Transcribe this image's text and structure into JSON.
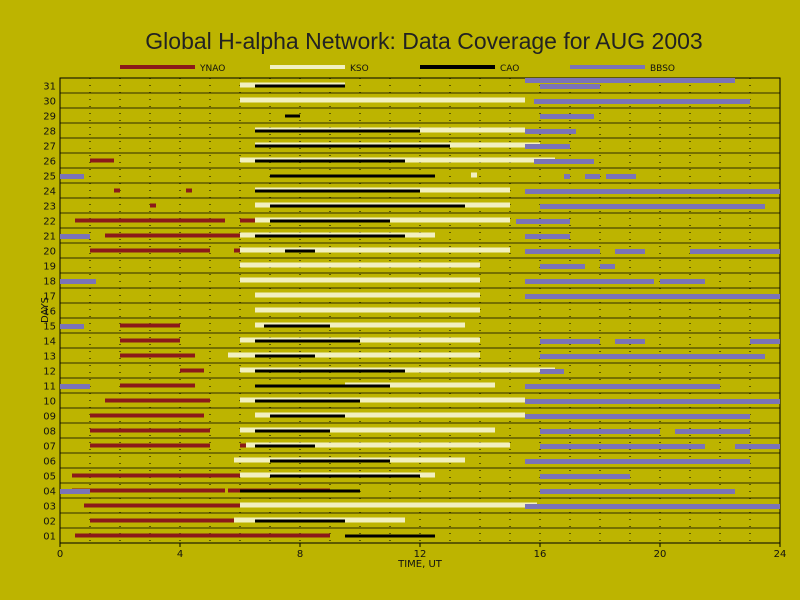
{
  "chart_data": {
    "type": "timeline",
    "title": "Global H-alpha Network: Data Coverage for AUG 2003",
    "xlabel": "TIME, UT",
    "ylabel": "DAYS",
    "xlim": [
      0,
      24
    ],
    "xticks": [
      "0",
      "4",
      "8",
      "12",
      "16",
      "20",
      "24"
    ],
    "ylim": [
      0.5,
      31.5
    ],
    "yticks": [
      "01",
      "02",
      "03",
      "04",
      "05",
      "06",
      "07",
      "08",
      "09",
      "10",
      "11",
      "12",
      "13",
      "14",
      "15",
      "16",
      "17",
      "18",
      "19",
      "20",
      "21",
      "22",
      "23",
      "24",
      "25",
      "26",
      "27",
      "28",
      "29",
      "30",
      "31"
    ],
    "legend_position": "top",
    "series": [
      {
        "name": "YNAO",
        "color": "#8b1a1a",
        "intervals": [
          {
            "day": 1,
            "segments": [
              [
                0.5,
                9.0
              ]
            ]
          },
          {
            "day": 2,
            "segments": [
              [
                1.0,
                5.8
              ]
            ]
          },
          {
            "day": 3,
            "segments": [
              [
                0.8,
                6.0
              ]
            ]
          },
          {
            "day": 4,
            "segments": [
              [
                0.4,
                5.5
              ],
              [
                5.6,
                9.0
              ]
            ]
          },
          {
            "day": 5,
            "segments": [
              [
                0.4,
                5.5
              ],
              [
                5.5,
                7.5
              ]
            ]
          },
          {
            "day": 7,
            "segments": [
              [
                1.0,
                5.0
              ],
              [
                6.0,
                8.0
              ]
            ]
          },
          {
            "day": 8,
            "segments": [
              [
                1.0,
                5.0
              ]
            ]
          },
          {
            "day": 9,
            "segments": [
              [
                1.0,
                4.8
              ],
              [
                7.0,
                8.0
              ]
            ]
          },
          {
            "day": 10,
            "segments": [
              [
                1.5,
                5.0
              ]
            ]
          },
          {
            "day": 11,
            "segments": [
              [
                2.0,
                4.5
              ]
            ]
          },
          {
            "day": 12,
            "segments": [
              [
                4.0,
                4.8
              ]
            ]
          },
          {
            "day": 13,
            "segments": [
              [
                2.0,
                4.5
              ],
              [
                6.5,
                8.5
              ]
            ]
          },
          {
            "day": 14,
            "segments": [
              [
                2.0,
                4.0
              ]
            ]
          },
          {
            "day": 15,
            "segments": [
              [
                2.0,
                4.0
              ],
              [
                7.0,
                8.5
              ]
            ]
          },
          {
            "day": 20,
            "segments": [
              [
                1.0,
                5.0
              ],
              [
                5.8,
                9.0
              ]
            ]
          },
          {
            "day": 21,
            "segments": [
              [
                1.5,
                6.0
              ],
              [
                6.0,
                9.0
              ]
            ]
          },
          {
            "day": 22,
            "segments": [
              [
                0.5,
                5.5
              ],
              [
                6.0,
                9.0
              ]
            ]
          },
          {
            "day": 23,
            "segments": [
              [
                3.0,
                3.2
              ]
            ]
          },
          {
            "day": 24,
            "segments": [
              [
                1.8,
                2.0
              ],
              [
                4.2,
                4.4
              ]
            ]
          },
          {
            "day": 26,
            "segments": [
              [
                1.0,
                1.8
              ]
            ]
          }
        ]
      },
      {
        "name": "KSO",
        "color": "#f2f0c0",
        "intervals": [
          {
            "day": 2,
            "segments": [
              [
                5.8,
                11.5
              ]
            ]
          },
          {
            "day": 3,
            "segments": [
              [
                6.0,
                15.9
              ]
            ]
          },
          {
            "day": 5,
            "segments": [
              [
                6.0,
                12.5
              ]
            ]
          },
          {
            "day": 6,
            "segments": [
              [
                5.8,
                13.5
              ]
            ]
          },
          {
            "day": 7,
            "segments": [
              [
                6.2,
                15.0
              ]
            ]
          },
          {
            "day": 8,
            "segments": [
              [
                6.0,
                14.5
              ]
            ]
          },
          {
            "day": 9,
            "segments": [
              [
                6.5,
                15.5
              ]
            ]
          },
          {
            "day": 10,
            "segments": [
              [
                6.0,
                15.5
              ]
            ]
          },
          {
            "day": 11,
            "segments": [
              [
                9.5,
                14.5
              ]
            ]
          },
          {
            "day": 12,
            "segments": [
              [
                6.0,
                16.5
              ]
            ]
          },
          {
            "day": 13,
            "segments": [
              [
                5.6,
                14.0
              ]
            ]
          },
          {
            "day": 14,
            "segments": [
              [
                6.0,
                14.0
              ]
            ]
          },
          {
            "day": 15,
            "segments": [
              [
                6.5,
                13.5
              ]
            ]
          },
          {
            "day": 16,
            "segments": [
              [
                6.5,
                14.0
              ]
            ]
          },
          {
            "day": 17,
            "segments": [
              [
                6.5,
                14.0
              ]
            ]
          },
          {
            "day": 18,
            "segments": [
              [
                6.0,
                14.0
              ]
            ]
          },
          {
            "day": 19,
            "segments": [
              [
                6.0,
                14.0
              ]
            ]
          },
          {
            "day": 20,
            "segments": [
              [
                6.0,
                15.0
              ]
            ]
          },
          {
            "day": 21,
            "segments": [
              [
                6.0,
                12.5
              ]
            ]
          },
          {
            "day": 22,
            "segments": [
              [
                6.5,
                15.0
              ]
            ]
          },
          {
            "day": 23,
            "segments": [
              [
                6.5,
                15.0
              ]
            ]
          },
          {
            "day": 24,
            "segments": [
              [
                6.5,
                15.0
              ]
            ]
          },
          {
            "day": 25,
            "segments": [
              [
                13.7,
                13.9
              ]
            ]
          },
          {
            "day": 26,
            "segments": [
              [
                6.0,
                16.5
              ]
            ]
          },
          {
            "day": 27,
            "segments": [
              [
                6.5,
                16.0
              ]
            ]
          },
          {
            "day": 28,
            "segments": [
              [
                6.5,
                15.5
              ]
            ]
          },
          {
            "day": 30,
            "segments": [
              [
                6.0,
                15.5
              ]
            ]
          },
          {
            "day": 31,
            "segments": [
              [
                6.0,
                9.5
              ]
            ]
          }
        ]
      },
      {
        "name": "CAO",
        "color": "#000000",
        "intervals": [
          {
            "day": 1,
            "segments": [
              [
                9.5,
                12.5
              ]
            ]
          },
          {
            "day": 2,
            "segments": [
              [
                6.5,
                9.5
              ]
            ]
          },
          {
            "day": 4,
            "segments": [
              [
                6.0,
                10.0
              ]
            ]
          },
          {
            "day": 5,
            "segments": [
              [
                7.0,
                12.0
              ]
            ]
          },
          {
            "day": 6,
            "segments": [
              [
                7.0,
                11.0
              ]
            ]
          },
          {
            "day": 7,
            "segments": [
              [
                6.5,
                8.5
              ]
            ]
          },
          {
            "day": 8,
            "segments": [
              [
                6.5,
                9.0
              ]
            ]
          },
          {
            "day": 9,
            "segments": [
              [
                7.0,
                9.5
              ]
            ]
          },
          {
            "day": 10,
            "segments": [
              [
                6.5,
                10.0
              ]
            ]
          },
          {
            "day": 11,
            "segments": [
              [
                6.5,
                11.0
              ]
            ]
          },
          {
            "day": 12,
            "segments": [
              [
                6.5,
                11.5
              ]
            ]
          },
          {
            "day": 13,
            "segments": [
              [
                6.5,
                8.5
              ]
            ]
          },
          {
            "day": 14,
            "segments": [
              [
                6.5,
                10.0
              ]
            ]
          },
          {
            "day": 15,
            "segments": [
              [
                6.8,
                9.0
              ]
            ]
          },
          {
            "day": 20,
            "segments": [
              [
                7.5,
                8.5
              ]
            ]
          },
          {
            "day": 21,
            "segments": [
              [
                6.5,
                11.5
              ]
            ]
          },
          {
            "day": 22,
            "segments": [
              [
                7.0,
                11.0
              ]
            ]
          },
          {
            "day": 23,
            "segments": [
              [
                7.0,
                13.5
              ]
            ]
          },
          {
            "day": 24,
            "segments": [
              [
                6.5,
                12.0
              ]
            ]
          },
          {
            "day": 25,
            "segments": [
              [
                7.0,
                12.5
              ]
            ]
          },
          {
            "day": 26,
            "segments": [
              [
                6.5,
                11.5
              ]
            ]
          },
          {
            "day": 27,
            "segments": [
              [
                6.5,
                13.0
              ]
            ]
          },
          {
            "day": 28,
            "segments": [
              [
                6.5,
                12.0
              ]
            ]
          },
          {
            "day": 29,
            "segments": [
              [
                7.5,
                8.0
              ]
            ]
          },
          {
            "day": 31,
            "segments": [
              [
                6.5,
                9.5
              ]
            ]
          }
        ]
      },
      {
        "name": "BBSO",
        "color": "#7b73b8",
        "intervals": [
          {
            "day": 3,
            "segments": [
              [
                15.5,
                24.0
              ]
            ]
          },
          {
            "day": 4,
            "segments": [
              [
                0.0,
                1.0
              ],
              [
                16.0,
                22.5
              ]
            ]
          },
          {
            "day": 5,
            "segments": [
              [
                16.0,
                19.0
              ]
            ]
          },
          {
            "day": 6,
            "segments": [
              [
                15.5,
                23.0
              ]
            ]
          },
          {
            "day": 7,
            "segments": [
              [
                16.0,
                21.5
              ],
              [
                22.5,
                24.0
              ]
            ]
          },
          {
            "day": 8,
            "segments": [
              [
                16.0,
                20.0
              ],
              [
                20.5,
                23.0
              ]
            ]
          },
          {
            "day": 9,
            "segments": [
              [
                15.5,
                23.0
              ]
            ]
          },
          {
            "day": 10,
            "segments": [
              [
                15.5,
                24.0
              ]
            ]
          },
          {
            "day": 11,
            "segments": [
              [
                0.0,
                1.0
              ],
              [
                15.5,
                22.0
              ]
            ]
          },
          {
            "day": 12,
            "segments": [
              [
                16.0,
                16.8
              ]
            ]
          },
          {
            "day": 13,
            "segments": [
              [
                16.0,
                23.5
              ]
            ]
          },
          {
            "day": 14,
            "segments": [
              [
                16.0,
                18.0
              ],
              [
                18.5,
                19.5
              ],
              [
                23.0,
                24.0
              ]
            ]
          },
          {
            "day": 15,
            "segments": [
              [
                0.0,
                0.8
              ]
            ]
          },
          {
            "day": 17,
            "segments": [
              [
                15.5,
                24.0
              ]
            ]
          },
          {
            "day": 18,
            "segments": [
              [
                0.0,
                1.2
              ],
              [
                15.5,
                19.8
              ],
              [
                20.0,
                21.5
              ]
            ]
          },
          {
            "day": 19,
            "segments": [
              [
                16.0,
                17.5
              ],
              [
                18.0,
                18.5
              ]
            ]
          },
          {
            "day": 20,
            "segments": [
              [
                15.5,
                18.0
              ],
              [
                18.5,
                19.5
              ],
              [
                21.0,
                24.0
              ]
            ]
          },
          {
            "day": 21,
            "segments": [
              [
                0.0,
                1.0
              ],
              [
                15.5,
                17.0
              ]
            ]
          },
          {
            "day": 22,
            "segments": [
              [
                15.2,
                17.0
              ]
            ]
          },
          {
            "day": 23,
            "segments": [
              [
                16.0,
                23.5
              ]
            ]
          },
          {
            "day": 24,
            "segments": [
              [
                15.5,
                24.0
              ]
            ]
          },
          {
            "day": 25,
            "segments": [
              [
                0.0,
                0.8
              ],
              [
                16.8,
                17.0
              ],
              [
                17.5,
                18.0
              ],
              [
                18.2,
                19.2
              ]
            ]
          },
          {
            "day": 26,
            "segments": [
              [
                15.8,
                17.8
              ]
            ]
          },
          {
            "day": 27,
            "segments": [
              [
                15.5,
                17.0
              ]
            ]
          },
          {
            "day": 28,
            "segments": [
              [
                15.5,
                17.2
              ]
            ]
          },
          {
            "day": 29,
            "segments": [
              [
                16.0,
                17.8
              ]
            ]
          },
          {
            "day": 30,
            "segments": [
              [
                15.8,
                23.0
              ]
            ]
          },
          {
            "day": 31,
            "segments": [
              [
                16.0,
                18.0
              ]
            ]
          },
          {
            "day": 32,
            "segments": [
              [
                15.5,
                22.5
              ]
            ]
          }
        ]
      }
    ]
  }
}
